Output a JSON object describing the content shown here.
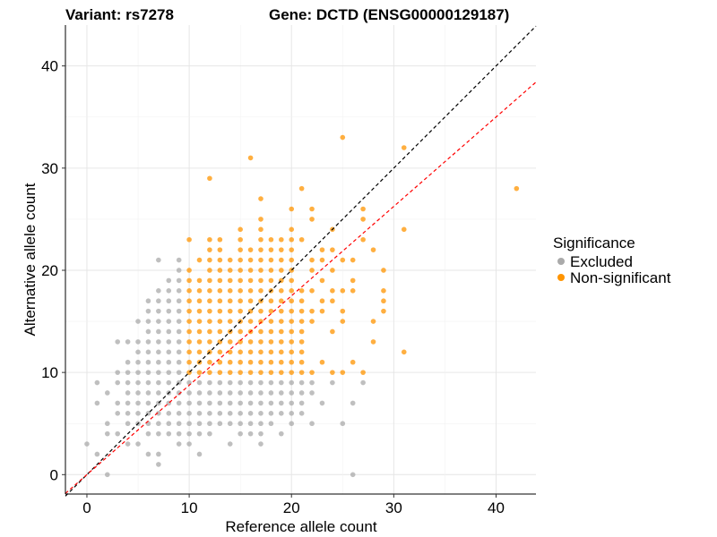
{
  "chart_data": {
    "type": "scatter",
    "title_left": "Variant: rs7278",
    "title_right": "Gene: DCTD (ENSG00000129187)",
    "xlabel": "Reference allele count",
    "ylabel": "Alternative allele count",
    "xlim": [
      -2.1,
      43.9
    ],
    "ylim": [
      -1.9,
      44.0
    ],
    "xticks": [
      0,
      10,
      20,
      30,
      40
    ],
    "yticks": [
      0,
      10,
      20,
      30,
      40
    ],
    "grid": true,
    "legend": {
      "title": "Significance",
      "placement": "right",
      "entries": [
        {
          "label": "Excluded",
          "color": "#aaaaaa"
        },
        {
          "label": "Non-significant",
          "color": "#ff9400"
        }
      ]
    },
    "reference_lines": [
      {
        "name": "identity",
        "slope": 1.0,
        "intercept": 0,
        "color": "#000000"
      },
      {
        "name": "fit",
        "slope": 0.875,
        "intercept": 0,
        "color": "#ff0000"
      }
    ],
    "series": [
      {
        "name": "Excluded",
        "color": "#aaaaaa",
        "rows": [
          {
            "y": 0,
            "x": [
              2,
              26
            ]
          },
          {
            "y": 1,
            "x": [
              7
            ]
          },
          {
            "y": 2,
            "x": [
              1,
              6,
              7,
              11
            ]
          },
          {
            "y": 3,
            "x": [
              0,
              4,
              5,
              9,
              10,
              14,
              17
            ]
          },
          {
            "y": 4,
            "x": [
              2,
              3,
              6,
              7,
              8,
              9,
              10,
              11,
              12,
              15,
              16,
              17,
              19
            ]
          },
          {
            "y": 5,
            "x": [
              2,
              4,
              5,
              6,
              7,
              8,
              9,
              10,
              11,
              12,
              13,
              14,
              15,
              16,
              17,
              18,
              20,
              22,
              25
            ]
          },
          {
            "y": 6,
            "x": [
              3,
              4,
              5,
              6,
              7,
              8,
              9,
              10,
              11,
              12,
              13,
              14,
              15,
              16,
              17,
              18,
              19,
              20,
              21
            ]
          },
          {
            "y": 7,
            "x": [
              1,
              3,
              4,
              5,
              6,
              7,
              8,
              9,
              10,
              11,
              12,
              13,
              14,
              15,
              16,
              17,
              18,
              19,
              20,
              21,
              23,
              26
            ]
          },
          {
            "y": 8,
            "x": [
              2,
              4,
              5,
              6,
              7,
              8,
              9,
              10,
              11,
              12,
              13,
              14,
              15,
              16,
              17,
              18,
              19,
              20,
              21,
              22
            ]
          },
          {
            "y": 9,
            "x": [
              1,
              3,
              4,
              5,
              6,
              7,
              8,
              9,
              10,
              11,
              12,
              13,
              14,
              15,
              16,
              17,
              18,
              19,
              20,
              21,
              22,
              24,
              27
            ]
          },
          {
            "y": 10,
            "x": [
              3,
              4,
              5,
              6,
              7,
              8,
              9
            ]
          },
          {
            "y": 11,
            "x": [
              4,
              5,
              6,
              7,
              8,
              9
            ]
          },
          {
            "y": 12,
            "x": [
              5,
              6,
              7,
              8,
              9
            ]
          },
          {
            "y": 13,
            "x": [
              3,
              4,
              5,
              6,
              7,
              8,
              9
            ]
          },
          {
            "y": 14,
            "x": [
              6,
              7,
              8,
              9
            ]
          },
          {
            "y": 15,
            "x": [
              5,
              6,
              7,
              8,
              9
            ]
          },
          {
            "y": 16,
            "x": [
              6,
              7,
              8,
              9
            ]
          },
          {
            "y": 17,
            "x": [
              6,
              7,
              8,
              9
            ]
          },
          {
            "y": 18,
            "x": [
              7,
              8,
              9
            ]
          },
          {
            "y": 19,
            "x": [
              8,
              9
            ]
          },
          {
            "y": 20,
            "x": [
              9
            ]
          },
          {
            "y": 21,
            "x": [
              7,
              9
            ]
          }
        ]
      },
      {
        "name": "Non-significant",
        "color": "#ff9400",
        "rows": [
          {
            "y": 10,
            "x": [
              10,
              11,
              12,
              13,
              14,
              15,
              16,
              17,
              18,
              19,
              20,
              21,
              22,
              24,
              25,
              27
            ]
          },
          {
            "y": 11,
            "x": [
              10,
              11,
              12,
              13,
              14,
              15,
              16,
              17,
              18,
              19,
              20,
              21,
              23,
              26
            ]
          },
          {
            "y": 12,
            "x": [
              10,
              11,
              12,
              13,
              14,
              15,
              16,
              17,
              18,
              19,
              20,
              21,
              31
            ]
          },
          {
            "y": 13,
            "x": [
              10,
              11,
              12,
              13,
              14,
              15,
              16,
              17,
              18,
              19,
              20,
              21,
              28
            ]
          },
          {
            "y": 14,
            "x": [
              10,
              11,
              12,
              13,
              14,
              15,
              16,
              17,
              18,
              19,
              20,
              21,
              24
            ]
          },
          {
            "y": 15,
            "x": [
              10,
              11,
              12,
              13,
              14,
              15,
              16,
              17,
              18,
              19,
              20,
              21,
              22,
              25,
              28
            ]
          },
          {
            "y": 16,
            "x": [
              10,
              11,
              12,
              13,
              14,
              15,
              16,
              17,
              18,
              19,
              20,
              21,
              22,
              23,
              25,
              29
            ]
          },
          {
            "y": 17,
            "x": [
              10,
              11,
              12,
              13,
              14,
              15,
              16,
              17,
              18,
              19,
              20,
              21,
              23,
              24,
              29
            ]
          },
          {
            "y": 18,
            "x": [
              10,
              11,
              12,
              13,
              14,
              15,
              16,
              17,
              18,
              19,
              20,
              21,
              22,
              24,
              25,
              26,
              29
            ]
          },
          {
            "y": 19,
            "x": [
              10,
              11,
              12,
              13,
              14,
              15,
              16,
              17,
              18,
              19,
              20,
              23,
              26
            ]
          },
          {
            "y": 20,
            "x": [
              10,
              12,
              13,
              14,
              15,
              16,
              17,
              18,
              19,
              20,
              22,
              24,
              29
            ]
          },
          {
            "y": 21,
            "x": [
              11,
              12,
              13,
              14,
              15,
              16,
              17,
              18,
              19,
              20,
              22,
              23,
              25,
              26
            ]
          },
          {
            "y": 22,
            "x": [
              12,
              13,
              15,
              16,
              17,
              18,
              19,
              20,
              23,
              24,
              28
            ]
          },
          {
            "y": 23,
            "x": [
              10,
              12,
              13,
              15,
              17,
              18,
              19,
              20,
              21,
              27
            ]
          },
          {
            "y": 24,
            "x": [
              15,
              17,
              20,
              24,
              31
            ]
          },
          {
            "y": 25,
            "x": [
              17,
              22,
              27
            ]
          },
          {
            "y": 26,
            "x": [
              20,
              22,
              27
            ]
          },
          {
            "y": 27,
            "x": [
              17
            ]
          },
          {
            "y": 28,
            "x": [
              21,
              42
            ]
          },
          {
            "y": 29,
            "x": [
              12
            ]
          },
          {
            "y": 31,
            "x": [
              16
            ]
          },
          {
            "y": 32,
            "x": [
              31
            ]
          },
          {
            "y": 33,
            "x": [
              25
            ]
          }
        ]
      }
    ]
  }
}
